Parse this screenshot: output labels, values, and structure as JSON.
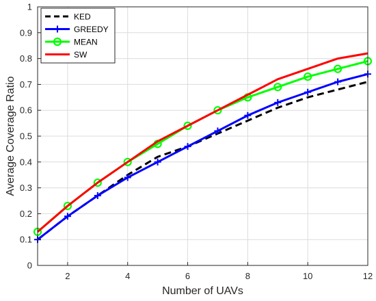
{
  "chart_data": {
    "type": "line",
    "xlabel": "Number of UAVs",
    "ylabel": "Average Coverage Ratio",
    "xlim": [
      1,
      12
    ],
    "ylim": [
      0,
      1
    ],
    "xticks": [
      2,
      4,
      6,
      8,
      10,
      12
    ],
    "yticks": [
      0,
      0.1,
      0.2,
      0.3,
      0.4,
      0.5,
      0.6,
      0.7,
      0.8,
      0.9,
      1
    ],
    "grid": true,
    "legend_position": "top-left",
    "x": [
      1,
      2,
      3,
      4,
      5,
      6,
      7,
      8,
      9,
      10,
      11,
      12
    ],
    "series": [
      {
        "name": "KED",
        "color": "#000000",
        "dash": "dashed",
        "marker": "none",
        "values": [
          0.1,
          0.19,
          0.27,
          0.35,
          0.42,
          0.46,
          0.51,
          0.56,
          0.61,
          0.65,
          0.68,
          0.71
        ]
      },
      {
        "name": "GREEDY",
        "color": "#0000ff",
        "dash": "solid",
        "marker": "plus",
        "values": [
          0.1,
          0.19,
          0.27,
          0.34,
          0.4,
          0.46,
          0.52,
          0.58,
          0.63,
          0.67,
          0.71,
          0.74
        ]
      },
      {
        "name": "MEAN",
        "color": "#00ff00",
        "dash": "solid",
        "marker": "circle",
        "values": [
          0.13,
          0.23,
          0.32,
          0.4,
          0.47,
          0.54,
          0.6,
          0.65,
          0.69,
          0.73,
          0.76,
          0.79
        ]
      },
      {
        "name": "SW",
        "color": "#ff0000",
        "dash": "solid",
        "marker": "none",
        "values": [
          0.13,
          0.23,
          0.32,
          0.4,
          0.48,
          0.54,
          0.6,
          0.66,
          0.72,
          0.76,
          0.8,
          0.82
        ]
      }
    ]
  }
}
